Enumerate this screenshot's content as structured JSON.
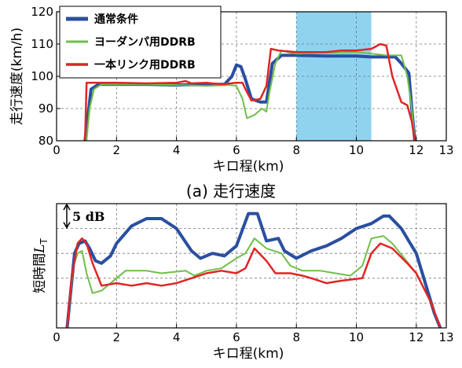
{
  "chart_data": [
    {
      "type": "line",
      "caption": "(a) 走行速度",
      "xlabel": "キロ程(km)",
      "ylabel": "走行速度(km/h)",
      "xlim": [
        0,
        13
      ],
      "ylim": [
        80,
        120
      ],
      "xticks": [
        "0",
        "2",
        "4",
        "6",
        "8",
        "10",
        "12",
        "13"
      ],
      "yticks": [
        "80",
        "90",
        "100",
        "110",
        "120"
      ],
      "grid": true,
      "legend_position": "top-left",
      "highlight_region": {
        "x0": 8.0,
        "x1": 10.5,
        "color": "#8fd3ef"
      },
      "series": [
        {
          "name": "通常条件",
          "color": "#2a4fa0",
          "width": 4,
          "points": [
            [
              0.95,
              80
            ],
            [
              1.05,
              88
            ],
            [
              1.15,
              96
            ],
            [
              1.4,
              97.5
            ],
            [
              2,
              97.5
            ],
            [
              3,
              97.5
            ],
            [
              4,
              97.3
            ],
            [
              5,
              97.5
            ],
            [
              5.6,
              97.5
            ],
            [
              5.85,
              100
            ],
            [
              6.0,
              103.5
            ],
            [
              6.15,
              103
            ],
            [
              6.3,
              99
            ],
            [
              6.5,
              93
            ],
            [
              6.8,
              92
            ],
            [
              7.0,
              92
            ],
            [
              7.2,
              104
            ],
            [
              7.5,
              106.5
            ],
            [
              8,
              106.5
            ],
            [
              9,
              106.3
            ],
            [
              10,
              106.3
            ],
            [
              10.5,
              106
            ],
            [
              11,
              106
            ],
            [
              11.3,
              106
            ],
            [
              11.5,
              104
            ],
            [
              11.75,
              101
            ],
            [
              11.85,
              90
            ],
            [
              11.95,
              80
            ]
          ]
        },
        {
          "name": "ヨーダンパ用DDRB",
          "color": "#6fbf4a",
          "width": 2,
          "points": [
            [
              1.0,
              80
            ],
            [
              1.1,
              90
            ],
            [
              1.25,
              96
            ],
            [
              1.5,
              97.5
            ],
            [
              2,
              97.5
            ],
            [
              3,
              97.5
            ],
            [
              4,
              97.3
            ],
            [
              5,
              97
            ],
            [
              5.8,
              97.3
            ],
            [
              6.0,
              97
            ],
            [
              6.2,
              93
            ],
            [
              6.35,
              87
            ],
            [
              6.6,
              88
            ],
            [
              6.85,
              90
            ],
            [
              7.0,
              89
            ],
            [
              7.1,
              95
            ],
            [
              7.3,
              104
            ],
            [
              7.5,
              108
            ],
            [
              7.7,
              107.5
            ],
            [
              8,
              107
            ],
            [
              9,
              107.3
            ],
            [
              10,
              107.5
            ],
            [
              10.5,
              107
            ],
            [
              11,
              106.5
            ],
            [
              11.5,
              106.5
            ],
            [
              11.7,
              100
            ],
            [
              11.85,
              90
            ],
            [
              11.95,
              80
            ]
          ]
        },
        {
          "name": "一本リンク用DDRB",
          "color": "#e02525",
          "width": 2.5,
          "points": [
            [
              0.95,
              80
            ],
            [
              1.0,
              98
            ],
            [
              1.3,
              98
            ],
            [
              2,
              98
            ],
            [
              3,
              97.8
            ],
            [
              4,
              98
            ],
            [
              4.3,
              98.5
            ],
            [
              4.5,
              97.8
            ],
            [
              5,
              98
            ],
            [
              5.5,
              97.5
            ],
            [
              6,
              98
            ],
            [
              6.2,
              98
            ],
            [
              6.3,
              96
            ],
            [
              6.5,
              92.5
            ],
            [
              6.8,
              93
            ],
            [
              7.0,
              97
            ],
            [
              7.15,
              108.5
            ],
            [
              7.4,
              108
            ],
            [
              8,
              107.5
            ],
            [
              9,
              107.5
            ],
            [
              9.5,
              108
            ],
            [
              10,
              108
            ],
            [
              10.5,
              108.5
            ],
            [
              10.8,
              110
            ],
            [
              11.0,
              109.5
            ],
            [
              11.2,
              100
            ],
            [
              11.5,
              92
            ],
            [
              11.7,
              91
            ],
            [
              11.85,
              86
            ],
            [
              11.95,
              80
            ]
          ]
        }
      ]
    },
    {
      "type": "line",
      "xlabel": "キロ程(km)",
      "ylabel": "短時間L_T",
      "ylabel_main": "短時間",
      "ylabel_symbol": "L",
      "ylabel_subscript": "T",
      "xlim": [
        0,
        13
      ],
      "ylim": [
        0,
        25
      ],
      "xticks": [
        "0",
        "2",
        "4",
        "6",
        "8",
        "10",
        "12",
        "13"
      ],
      "grid": true,
      "annotation": "5 dB",
      "annotation_span": [
        20,
        25
      ],
      "series": [
        {
          "name": "通常条件",
          "color": "#2a4fa0",
          "width": 4,
          "points": [
            [
              0.35,
              0
            ],
            [
              0.6,
              15
            ],
            [
              0.75,
              17
            ],
            [
              0.95,
              17.5
            ],
            [
              1.1,
              16
            ],
            [
              1.3,
              13.5
            ],
            [
              1.5,
              13
            ],
            [
              1.8,
              14.5
            ],
            [
              2,
              17
            ],
            [
              2.5,
              20.5
            ],
            [
              3,
              22
            ],
            [
              3.5,
              22
            ],
            [
              4,
              20
            ],
            [
              4.5,
              15.5
            ],
            [
              4.8,
              14
            ],
            [
              5.2,
              15
            ],
            [
              5.6,
              14.5
            ],
            [
              6,
              16.5
            ],
            [
              6.4,
              23
            ],
            [
              6.7,
              23
            ],
            [
              7.0,
              17.5
            ],
            [
              7.4,
              18
            ],
            [
              7.6,
              15.5
            ],
            [
              8,
              14
            ],
            [
              8.5,
              15.5
            ],
            [
              9,
              16.5
            ],
            [
              9.5,
              18
            ],
            [
              10,
              20
            ],
            [
              10.5,
              21
            ],
            [
              10.9,
              22.5
            ],
            [
              11.1,
              22.5
            ],
            [
              11.5,
              20
            ],
            [
              11.8,
              17
            ],
            [
              12.0,
              15
            ],
            [
              12.2,
              11
            ],
            [
              12.6,
              3
            ],
            [
              12.8,
              0
            ]
          ]
        },
        {
          "name": "ヨーダンパ用DDRB",
          "color": "#6fbf4a",
          "width": 2,
          "points": [
            [
              0.35,
              0
            ],
            [
              0.55,
              12
            ],
            [
              0.7,
              15
            ],
            [
              0.85,
              15.5
            ],
            [
              1.0,
              11
            ],
            [
              1.2,
              7
            ],
            [
              1.5,
              7.5
            ],
            [
              2,
              10
            ],
            [
              2.3,
              11.5
            ],
            [
              3,
              11.5
            ],
            [
              3.5,
              11
            ],
            [
              4.3,
              11.5
            ],
            [
              4.6,
              10.5
            ],
            [
              5,
              11.5
            ],
            [
              5.5,
              12
            ],
            [
              6,
              14
            ],
            [
              6.3,
              15
            ],
            [
              6.6,
              18
            ],
            [
              7.0,
              16
            ],
            [
              7.5,
              15
            ],
            [
              7.8,
              12.5
            ],
            [
              8.2,
              11.5
            ],
            [
              8.8,
              11.5
            ],
            [
              9.3,
              11
            ],
            [
              9.8,
              10.5
            ],
            [
              10.2,
              12.5
            ],
            [
              10.5,
              18
            ],
            [
              10.9,
              18.5
            ],
            [
              11.2,
              17
            ],
            [
              11.6,
              14
            ],
            [
              12.0,
              11
            ],
            [
              12.5,
              5
            ],
            [
              12.8,
              0
            ]
          ]
        },
        {
          "name": "一本リンク用DDRB",
          "color": "#e02525",
          "width": 2.5,
          "points": [
            [
              0.35,
              0
            ],
            [
              0.5,
              10
            ],
            [
              0.7,
              17
            ],
            [
              0.85,
              18
            ],
            [
              1.0,
              17
            ],
            [
              1.2,
              13
            ],
            [
              1.5,
              8.5
            ],
            [
              2,
              9
            ],
            [
              2.5,
              8.5
            ],
            [
              3,
              9
            ],
            [
              3.5,
              8.5
            ],
            [
              4,
              9
            ],
            [
              4.5,
              10
            ],
            [
              5,
              11
            ],
            [
              5.5,
              11.5
            ],
            [
              6,
              11
            ],
            [
              6.3,
              12
            ],
            [
              6.6,
              16
            ],
            [
              7.0,
              13.5
            ],
            [
              7.3,
              11
            ],
            [
              7.8,
              11
            ],
            [
              8.2,
              10.5
            ],
            [
              8.5,
              10
            ],
            [
              9,
              9
            ],
            [
              9.5,
              9.5
            ],
            [
              10.2,
              10
            ],
            [
              10.5,
              15
            ],
            [
              10.8,
              17
            ],
            [
              11.2,
              16
            ],
            [
              11.7,
              13
            ],
            [
              12.0,
              11
            ],
            [
              12.5,
              5
            ],
            [
              12.8,
              0
            ]
          ]
        }
      ]
    }
  ],
  "colors": {
    "highlight": "#8fd3ef",
    "grid": "#777777"
  }
}
